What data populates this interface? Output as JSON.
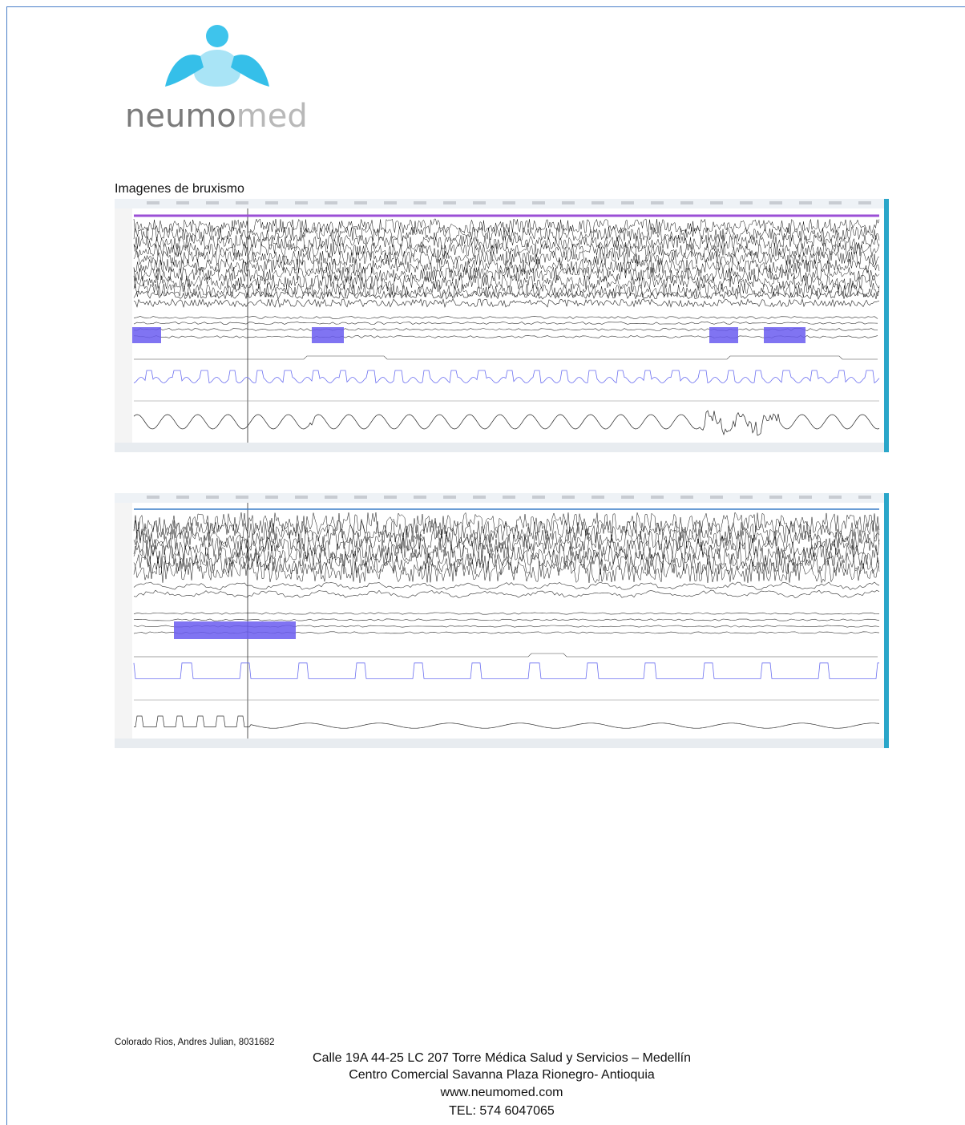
{
  "logo": {
    "text_dark": "neumo",
    "text_light": "med"
  },
  "section": {
    "heading": "Imagenes de bruxismo"
  },
  "footer": {
    "patient": "Colorado Rios, Andres Julian, 8031682",
    "address_lines": [
      "Calle 19A 44-25 LC 207 Torre Médica Salud y Servicios – Medellín",
      "Centro Comercial Savanna Plaza Rionegro- Antioquia",
      "www.neumomed.com",
      "TEL: 574 6047065"
    ]
  }
}
